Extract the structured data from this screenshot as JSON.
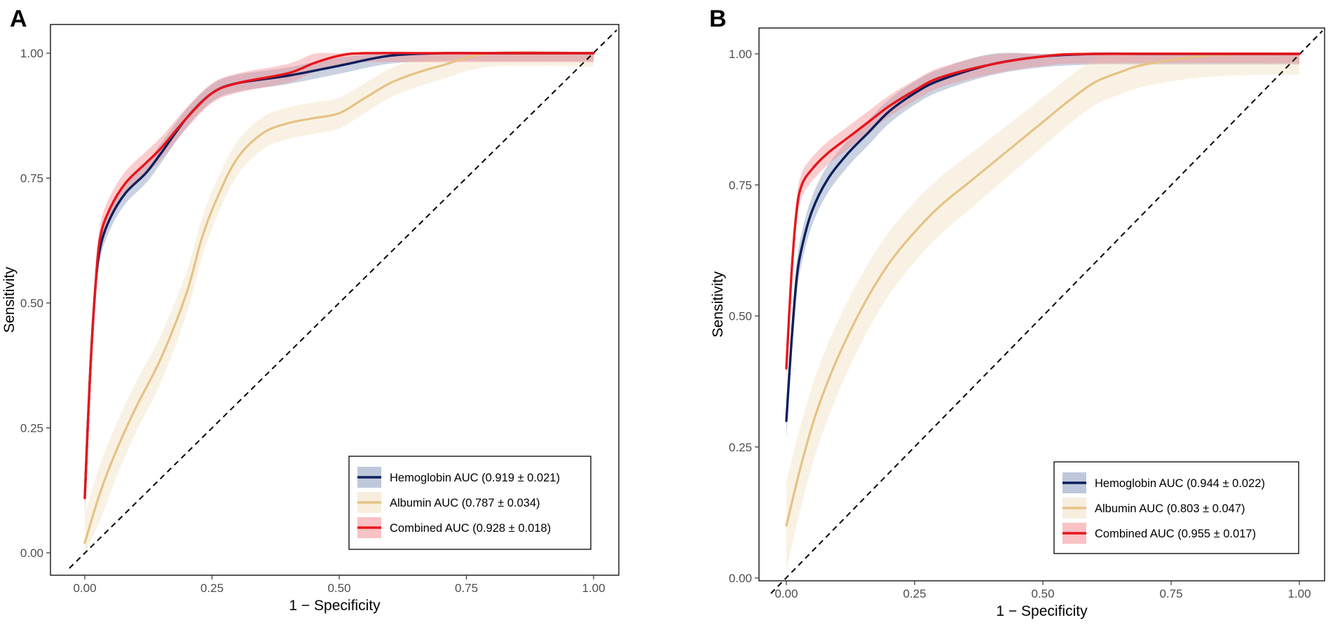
{
  "colors": {
    "hemoglobin": "#0a1f5c",
    "hemoglobin_band": "#8a9bbd",
    "albumin": "#e6c285",
    "albumin_band": "#efdcb8",
    "combined": "#e8141b",
    "combined_band": "#f48b8f",
    "diagonal": "#000000"
  },
  "chart_data": [
    {
      "panel": "A",
      "type": "line",
      "xlabel": "1 − Specificity",
      "ylabel": "Sensitivity",
      "xlim": [
        0,
        1
      ],
      "ylim": [
        0,
        1
      ],
      "xticks": [
        "0.00",
        "0.25",
        "0.50",
        "0.75",
        "1.00"
      ],
      "yticks": [
        "0.00",
        "0.25",
        "0.50",
        "0.75",
        "1.00"
      ],
      "legend_position": "bottom-right",
      "series": [
        {
          "key": "hemoglobin",
          "name": "Hemoglobin AUC (0.919 ± 0.021)",
          "x": [
            0,
            0.01,
            0.02,
            0.03,
            0.05,
            0.08,
            0.12,
            0.15,
            0.2,
            0.25,
            0.3,
            0.4,
            0.5,
            0.6,
            0.7,
            0.8,
            1.0
          ],
          "y": [
            0.11,
            0.35,
            0.52,
            0.61,
            0.67,
            0.72,
            0.76,
            0.8,
            0.87,
            0.92,
            0.94,
            0.955,
            0.975,
            0.995,
            1.0,
            1.0,
            1.0
          ],
          "band": 0.035
        },
        {
          "key": "albumin",
          "name": "Albumin AUC (0.787 ± 0.034)",
          "x": [
            0,
            0.03,
            0.06,
            0.1,
            0.15,
            0.2,
            0.23,
            0.26,
            0.3,
            0.35,
            0.4,
            0.45,
            0.5,
            0.55,
            0.6,
            0.65,
            0.7,
            0.8,
            1.0
          ],
          "y": [
            0.02,
            0.12,
            0.2,
            0.29,
            0.39,
            0.52,
            0.63,
            0.71,
            0.79,
            0.84,
            0.86,
            0.87,
            0.88,
            0.91,
            0.94,
            0.96,
            0.975,
            1.0,
            1.0
          ],
          "band": 0.06
        },
        {
          "key": "combined",
          "name": "Combined AUC (0.928 ± 0.018)",
          "x": [
            0,
            0.01,
            0.02,
            0.03,
            0.05,
            0.08,
            0.12,
            0.15,
            0.2,
            0.25,
            0.3,
            0.4,
            0.45,
            0.5,
            0.55,
            0.7,
            1.0
          ],
          "y": [
            0.11,
            0.35,
            0.52,
            0.63,
            0.69,
            0.74,
            0.78,
            0.81,
            0.87,
            0.92,
            0.94,
            0.96,
            0.98,
            0.995,
            1.0,
            1.0,
            1.0
          ],
          "band": 0.04
        }
      ]
    },
    {
      "panel": "B",
      "type": "line",
      "xlabel": "1 − Specificity",
      "ylabel": "Sensitivity",
      "xlim": [
        0,
        1
      ],
      "ylim": [
        0,
        1
      ],
      "xticks": [
        "0.00",
        "0.25",
        "0.50",
        "0.75",
        "1.00"
      ],
      "yticks": [
        "0.00",
        "0.25",
        "0.50",
        "0.75",
        "1.00"
      ],
      "legend_position": "bottom-right",
      "series": [
        {
          "key": "hemoglobin",
          "name": "Hemoglobin AUC (0.944 ± 0.022)",
          "x": [
            0,
            0.01,
            0.02,
            0.03,
            0.05,
            0.08,
            0.12,
            0.16,
            0.2,
            0.25,
            0.3,
            0.4,
            0.5,
            0.6,
            0.7,
            1.0
          ],
          "y": [
            0.3,
            0.45,
            0.57,
            0.63,
            0.7,
            0.76,
            0.81,
            0.85,
            0.89,
            0.925,
            0.95,
            0.98,
            0.995,
            1.0,
            1.0,
            1.0
          ],
          "band": 0.045
        },
        {
          "key": "albumin",
          "name": "Albumin AUC (0.803 ± 0.047)",
          "x": [
            0,
            0.03,
            0.06,
            0.1,
            0.15,
            0.2,
            0.25,
            0.3,
            0.35,
            0.4,
            0.45,
            0.5,
            0.55,
            0.6,
            0.65,
            0.7,
            0.8,
            0.9,
            1.0
          ],
          "y": [
            0.1,
            0.22,
            0.32,
            0.42,
            0.52,
            0.6,
            0.66,
            0.71,
            0.75,
            0.79,
            0.83,
            0.87,
            0.91,
            0.945,
            0.965,
            0.98,
            0.995,
            1.0,
            1.0
          ],
          "band": 0.09
        },
        {
          "key": "combined",
          "name": "Combined AUC (0.955 ± 0.017)",
          "x": [
            0,
            0.01,
            0.02,
            0.03,
            0.05,
            0.08,
            0.12,
            0.16,
            0.2,
            0.25,
            0.3,
            0.4,
            0.5,
            0.6,
            1.0
          ],
          "y": [
            0.4,
            0.58,
            0.7,
            0.75,
            0.78,
            0.81,
            0.84,
            0.87,
            0.9,
            0.93,
            0.955,
            0.98,
            0.995,
            1.0,
            1.0
          ],
          "band": 0.04
        }
      ]
    }
  ]
}
